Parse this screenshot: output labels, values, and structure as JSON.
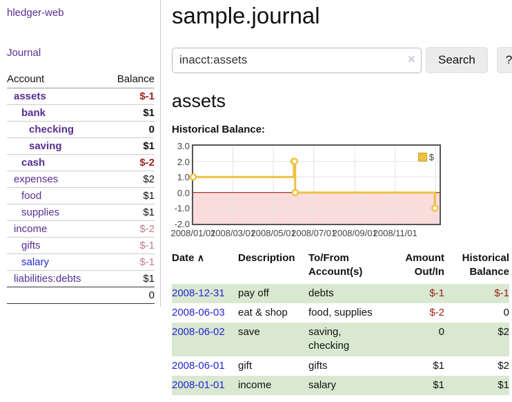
{
  "app": {
    "title": "hledger-web",
    "nav_journal": "Journal"
  },
  "colors": {
    "purple": "#552e91",
    "blue": "#2525d2",
    "negative_dark": "#9d2020",
    "negative_light": "#c17d7d",
    "row_green": "#d9e8d0",
    "chart_line": "#EDC240",
    "chart_negative_fill": "#fbdcdc",
    "chart_zero_line": "#8b0000",
    "chart_grid": "#e3e3e3"
  },
  "sidebar": {
    "header": {
      "account": "Account",
      "balance": "Balance"
    },
    "accounts": [
      {
        "label": "assets",
        "indent": 1,
        "bold": true,
        "balance": "$-1",
        "neg": "dark"
      },
      {
        "label": "bank",
        "indent": 2,
        "bold": true,
        "balance": "$1"
      },
      {
        "label": "checking",
        "indent": 3,
        "bold": true,
        "balance": "0"
      },
      {
        "label": "saving",
        "indent": 3,
        "bold": true,
        "balance": "$1"
      },
      {
        "label": "cash",
        "indent": 2,
        "bold": true,
        "balance": "$-2",
        "neg": "dark"
      },
      {
        "label": "expenses",
        "indent": 1,
        "bold": false,
        "balance": "$2"
      },
      {
        "label": "food",
        "indent": 2,
        "bold": false,
        "balance": "$1"
      },
      {
        "label": "supplies",
        "indent": 2,
        "bold": false,
        "balance": "$1"
      },
      {
        "label": "income",
        "indent": 1,
        "bold": false,
        "balance": "$-2",
        "neg": "light"
      },
      {
        "label": "gifts",
        "indent": 2,
        "bold": false,
        "balance": "$-1",
        "neg": "light"
      },
      {
        "label": "salary",
        "indent": 2,
        "bold": false,
        "balance": "$-1",
        "neg": "light",
        "link": "blue"
      },
      {
        "label": "liabilities:debts",
        "indent": 1,
        "bold": false,
        "balance": "$1"
      }
    ],
    "total": "0"
  },
  "main": {
    "title": "sample.journal",
    "search": {
      "value": "inacct:assets",
      "clear_label": "×",
      "button": "Search",
      "help": "?"
    },
    "account_heading": "assets",
    "chart_label": "Historical Balance:"
  },
  "chart_data": {
    "type": "line",
    "style": "step",
    "title": "Historical Balance",
    "series": [
      {
        "name": "$",
        "points": [
          [
            "2008-01-01",
            1
          ],
          [
            "2008-06-01",
            2
          ],
          [
            "2008-06-02",
            2
          ],
          [
            "2008-06-03",
            0
          ],
          [
            "2008-12-31",
            -1
          ]
        ]
      }
    ],
    "x_ticks": [
      "2008/01/01",
      "2008/03/01",
      "2008/05/01",
      "2008/07/01",
      "2008/09/01",
      "2008/11/01"
    ],
    "x_grid": [
      "2008/03/01",
      "2008/05/01",
      "2008/07/01",
      "2008/09/01",
      "2008/11/01",
      "2009/01/01"
    ],
    "x_range": [
      "2008-01-01",
      "2009-01-07"
    ],
    "y_ticks": [
      "3.0",
      "2.0",
      "1.0",
      "0.0",
      "-1.0",
      "-2.0"
    ],
    "ylim": [
      -2,
      3
    ],
    "grid": true,
    "legend_position": "top-right",
    "negative_region_shaded": true
  },
  "register": {
    "sort_indicator": "∧",
    "columns": [
      "Date",
      "Description",
      "To/From Account(s)",
      "Amount Out/In",
      "Historical Balance"
    ],
    "rows": [
      {
        "date": "2008-12-31",
        "description": "pay off",
        "accounts": "debts",
        "amount": "$-1",
        "balance": "$-1"
      },
      {
        "date": "2008-06-03",
        "description": "eat & shop",
        "accounts": "food, supplies",
        "amount": "$-2",
        "balance": "0"
      },
      {
        "date": "2008-06-02",
        "description": "save",
        "accounts": "saving, checking",
        "amount": "0",
        "balance": "$2"
      },
      {
        "date": "2008-06-01",
        "description": "gift",
        "accounts": "gifts",
        "amount": "$1",
        "balance": "$2"
      },
      {
        "date": "2008-01-01",
        "description": "income",
        "accounts": "salary",
        "amount": "$1",
        "balance": "$1"
      }
    ]
  }
}
